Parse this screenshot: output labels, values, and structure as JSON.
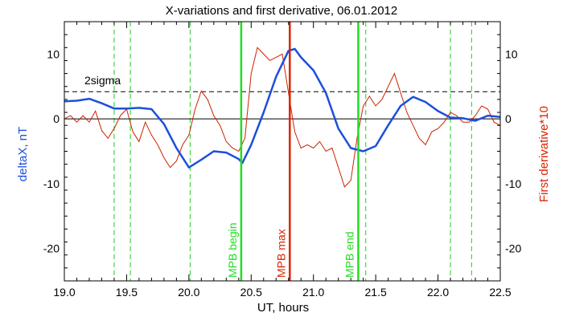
{
  "chart_data": {
    "type": "line",
    "title": "X-variations and first derivative, 06.01.2012",
    "xlabel": "UT, hours",
    "ylabel_left": "deltaX, nT",
    "ylabel_right": "First derivative*10",
    "xlim": [
      19.0,
      22.5
    ],
    "ylim": [
      -25,
      15
    ],
    "x_ticks": [
      19.0,
      19.5,
      20.0,
      20.5,
      21.0,
      21.5,
      22.0,
      22.5
    ],
    "x_tick_labels": [
      "19.0",
      "19.5",
      "20.0",
      "20.5",
      "21.0",
      "21.5",
      "22.0",
      "22.5"
    ],
    "y_ticks": [
      -20,
      -10,
      0,
      10
    ],
    "y_tick_labels": [
      "-20",
      "-10",
      "0",
      "10"
    ],
    "colors": {
      "deltaX": "#1c4fdc",
      "derivative": "#cc2200",
      "mpb_bounds": "#22dd22",
      "mpb_max": "#dd2200",
      "dashed_markers": "#22cc22",
      "sigma": "#000000",
      "left_label": "#1c4fdc",
      "right_label": "#dd2200"
    },
    "sigma": {
      "label": "2sigma",
      "value": 4.2
    },
    "zero_line": 0,
    "dashed_markers": [
      19.4,
      19.53,
      20.01,
      21.42,
      22.1,
      22.27
    ],
    "vertical_markers": [
      {
        "label": "MPB begin",
        "x": 20.42,
        "color": "#22dd22"
      },
      {
        "label": "MPB max",
        "x": 20.81,
        "color": "#dd2200"
      },
      {
        "label": "MPB end",
        "x": 21.36,
        "color": "#22dd22"
      }
    ],
    "series": [
      {
        "key": "deltaX",
        "values": [
          [
            19.0,
            2.7
          ],
          [
            19.1,
            2.8
          ],
          [
            19.2,
            3.1
          ],
          [
            19.3,
            2.4
          ],
          [
            19.4,
            1.6
          ],
          [
            19.5,
            1.6
          ],
          [
            19.6,
            1.7
          ],
          [
            19.7,
            1.5
          ],
          [
            19.8,
            -0.8
          ],
          [
            19.9,
            -4.5
          ],
          [
            20.0,
            -7.5
          ],
          [
            20.1,
            -6.3
          ],
          [
            20.2,
            -5.0
          ],
          [
            20.3,
            -5.2
          ],
          [
            20.4,
            -6.2
          ],
          [
            20.43,
            -6.8
          ],
          [
            20.5,
            -4.0
          ],
          [
            20.6,
            1.0
          ],
          [
            20.7,
            6.5
          ],
          [
            20.8,
            10.5
          ],
          [
            20.85,
            10.8
          ],
          [
            20.9,
            9.5
          ],
          [
            21.0,
            7.5
          ],
          [
            21.1,
            4.0
          ],
          [
            21.2,
            -1.5
          ],
          [
            21.3,
            -4.5
          ],
          [
            21.4,
            -5.0
          ],
          [
            21.5,
            -4.2
          ],
          [
            21.6,
            -1.0
          ],
          [
            21.7,
            2.0
          ],
          [
            21.8,
            3.4
          ],
          [
            21.9,
            2.6
          ],
          [
            22.0,
            1.2
          ],
          [
            22.1,
            0.2
          ],
          [
            22.2,
            0.1
          ],
          [
            22.3,
            -0.3
          ],
          [
            22.4,
            0.5
          ],
          [
            22.5,
            0.3
          ]
        ]
      },
      {
        "key": "derivative",
        "values": [
          [
            19.0,
            0.0
          ],
          [
            19.05,
            0.5
          ],
          [
            19.1,
            -0.5
          ],
          [
            19.15,
            0.5
          ],
          [
            19.2,
            -0.5
          ],
          [
            19.25,
            1.2
          ],
          [
            19.3,
            -1.8
          ],
          [
            19.35,
            -3.0
          ],
          [
            19.4,
            -1.5
          ],
          [
            19.45,
            0.5
          ],
          [
            19.5,
            1.5
          ],
          [
            19.55,
            -2.0
          ],
          [
            19.6,
            -3.5
          ],
          [
            19.65,
            -0.5
          ],
          [
            19.7,
            -2.5
          ],
          [
            19.75,
            -4.0
          ],
          [
            19.8,
            -6.0
          ],
          [
            19.85,
            -7.5
          ],
          [
            19.9,
            -6.5
          ],
          [
            19.95,
            -4.0
          ],
          [
            20.0,
            -2.5
          ],
          [
            20.05,
            1.5
          ],
          [
            20.1,
            4.3
          ],
          [
            20.15,
            3.0
          ],
          [
            20.2,
            0.5
          ],
          [
            20.25,
            -1.0
          ],
          [
            20.3,
            -3.5
          ],
          [
            20.35,
            -4.5
          ],
          [
            20.4,
            -5.0
          ],
          [
            20.45,
            -3.0
          ],
          [
            20.5,
            7.0
          ],
          [
            20.55,
            11.0
          ],
          [
            20.6,
            10.0
          ],
          [
            20.65,
            9.0
          ],
          [
            20.7,
            9.5
          ],
          [
            20.75,
            10.0
          ],
          [
            20.8,
            4.0
          ],
          [
            20.85,
            -2.0
          ],
          [
            20.9,
            -4.5
          ],
          [
            20.95,
            -4.0
          ],
          [
            21.0,
            -4.5
          ],
          [
            21.05,
            -3.5
          ],
          [
            21.1,
            -5.0
          ],
          [
            21.15,
            -4.5
          ],
          [
            21.2,
            -7.5
          ],
          [
            21.25,
            -10.5
          ],
          [
            21.3,
            -9.5
          ],
          [
            21.35,
            -3.0
          ],
          [
            21.4,
            2.0
          ],
          [
            21.45,
            3.5
          ],
          [
            21.5,
            2.0
          ],
          [
            21.55,
            3.0
          ],
          [
            21.6,
            5.0
          ],
          [
            21.65,
            7.0
          ],
          [
            21.7,
            4.0
          ],
          [
            21.75,
            1.0
          ],
          [
            21.8,
            -1.0
          ],
          [
            21.85,
            -3.0
          ],
          [
            21.9,
            -4.0
          ],
          [
            21.95,
            -2.0
          ],
          [
            22.0,
            -1.5
          ],
          [
            22.05,
            -0.5
          ],
          [
            22.1,
            1.0
          ],
          [
            22.15,
            0.5
          ],
          [
            22.2,
            -0.5
          ],
          [
            22.25,
            -0.5
          ],
          [
            22.3,
            0.5
          ],
          [
            22.35,
            2.0
          ],
          [
            22.4,
            1.5
          ],
          [
            22.45,
            -0.5
          ],
          [
            22.5,
            -1.0
          ]
        ]
      }
    ]
  }
}
